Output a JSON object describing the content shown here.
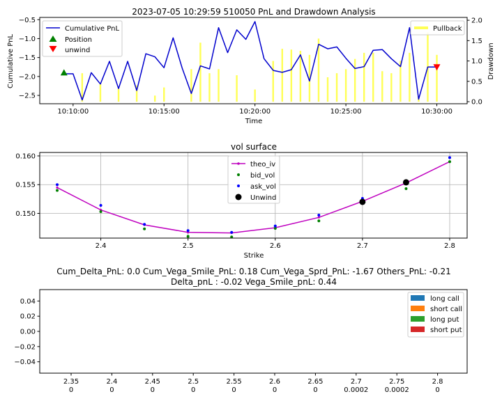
{
  "chart_data": [
    {
      "type": "line",
      "title": "2023-07-05 10:29:59 510050 PnL and Drawdown Analysis",
      "xlabel": "Time",
      "ylabel": "Cumulative PnL",
      "ylabel_right": "Drawdown",
      "xlim": [
        "10:08:10",
        "10:31:40"
      ],
      "ylim": [
        -2.72,
        -0.44
      ],
      "ylim_right": [
        -0.05,
        2.07
      ],
      "xticks": [
        "10:10:00",
        "10:15:00",
        "10:20:00",
        "10:25:00",
        "10:30:00"
      ],
      "yticks": [
        -0.5,
        -1.0,
        -1.5,
        -2.0,
        -2.5
      ],
      "yticks_right": [
        0.0,
        0.5,
        1.0,
        1.5,
        2.0
      ],
      "legend_left": [
        "Cumulative PnL",
        "Position",
        "unwind"
      ],
      "legend_right": [
        "Pullback"
      ],
      "colors": {
        "pnl": "#0000cd",
        "pullback": "#ffff55",
        "position": "#008000",
        "unwind": "#ff0000"
      },
      "series": [
        {
          "name": "Cumulative PnL",
          "x": [
            "10:09:30",
            "10:10:00",
            "10:10:30",
            "10:11:00",
            "10:11:30",
            "10:12:00",
            "10:12:30",
            "10:13:00",
            "10:13:30",
            "10:14:00",
            "10:14:30",
            "10:15:00",
            "10:15:30",
            "10:16:00",
            "10:16:30",
            "10:17:00",
            "10:17:30",
            "10:18:00",
            "10:18:30",
            "10:19:00",
            "10:19:30",
            "10:20:00",
            "10:20:30",
            "10:21:00",
            "10:21:30",
            "10:22:00",
            "10:22:30",
            "10:23:00",
            "10:23:30",
            "10:24:00",
            "10:24:30",
            "10:25:00",
            "10:25:30",
            "10:26:00",
            "10:26:30",
            "10:27:00",
            "10:27:30",
            "10:28:00",
            "10:28:30",
            "10:29:00",
            "10:29:30",
            "10:30:00"
          ],
          "y": [
            -1.93,
            -1.93,
            -2.62,
            -1.9,
            -2.2,
            -1.6,
            -2.32,
            -1.6,
            -2.37,
            -1.4,
            -1.48,
            -1.77,
            -0.98,
            -1.78,
            -2.45,
            -1.72,
            -1.8,
            -0.71,
            -1.37,
            -0.77,
            -1.02,
            -0.55,
            -1.53,
            -1.84,
            -1.89,
            -1.82,
            -1.43,
            -2.12,
            -1.15,
            -1.27,
            -1.22,
            -1.52,
            -1.79,
            -1.74,
            -1.31,
            -1.29,
            -1.53,
            -1.74,
            -0.71,
            -2.6,
            -1.75,
            -1.75
          ]
        },
        {
          "name": "Pullback",
          "type": "bar",
          "x": [
            "10:10:30",
            "10:11:30",
            "10:12:30",
            "10:13:30",
            "10:14:30",
            "10:15:00",
            "10:16:30",
            "10:17:00",
            "10:17:30",
            "10:18:00",
            "10:19:00",
            "10:20:00",
            "10:21:00",
            "10:21:30",
            "10:22:00",
            "10:22:30",
            "10:23:00",
            "10:23:30",
            "10:24:00",
            "10:24:30",
            "10:25:00",
            "10:25:30",
            "10:26:00",
            "10:26:30",
            "10:27:00",
            "10:27:30",
            "10:28:00",
            "10:28:30",
            "10:29:00",
            "10:29:30",
            "10:30:00"
          ],
          "y": [
            0.7,
            0.45,
            0.32,
            0.4,
            0.15,
            0.35,
            0.8,
            1.45,
            0.7,
            0.8,
            0.65,
            0.3,
            1.0,
            1.3,
            1.28,
            1.25,
            1.15,
            1.55,
            0.6,
            0.7,
            0.8,
            1.05,
            1.2,
            1.2,
            0.75,
            0.7,
            1.0,
            1.2,
            0.15,
            1.7,
            1.15
          ]
        },
        {
          "name": "Position",
          "x": [
            "10:09:30"
          ],
          "y": [
            -1.9
          ],
          "marker": "triangle-up"
        },
        {
          "name": "unwind",
          "x": [
            "10:30:00"
          ],
          "y": [
            -1.75
          ],
          "marker": "triangle-down"
        }
      ]
    },
    {
      "type": "line",
      "title": "vol surface",
      "xlabel": "Strike",
      "ylabel": "",
      "xlim": [
        2.33,
        2.82
      ],
      "ylim": [
        0.1457,
        0.1606
      ],
      "xticks": [
        "2.4",
        "2.5",
        "2.6",
        "2.7",
        "2.8"
      ],
      "yticks": [
        "0.150",
        "0.155",
        "0.160"
      ],
      "legend": [
        "theo_iv",
        "bid_vol",
        "ask_vol",
        "Unwind"
      ],
      "colors": {
        "theo_iv": "#bf00bf",
        "bid_vol": "#008000",
        "ask_vol": "#0000ff",
        "unwind": "#000000"
      },
      "categories": [
        2.35,
        2.4,
        2.45,
        2.5,
        2.55,
        2.6,
        2.65,
        2.7,
        2.75,
        2.8
      ],
      "series": [
        {
          "name": "theo_iv",
          "values": [
            0.1545,
            0.1506,
            0.148,
            0.1467,
            0.1466,
            0.1475,
            0.1493,
            0.1521,
            0.1553,
            0.159
          ]
        },
        {
          "name": "bid_vol",
          "values": [
            0.154,
            0.1503,
            0.1473,
            0.146,
            0.1459,
            0.1474,
            0.1487,
            0.152,
            0.1543,
            0.159
          ]
        },
        {
          "name": "ask_vol",
          "values": [
            0.155,
            0.1514,
            0.1481,
            0.147,
            0.1467,
            0.1478,
            0.1497,
            0.1526,
            0.1555,
            0.1597
          ]
        },
        {
          "name": "Unwind",
          "x": [
            2.7,
            2.75
          ],
          "values": [
            0.152,
            0.1554
          ]
        }
      ]
    },
    {
      "type": "bar",
      "title": "Cum_Delta_PnL: 0.0  Cum_Vega_Smile_PnL: 0.18 Cum_Vega_Sprd_PnL: -1.67 Others_PnL: -0.21",
      "subtitle": "Delta_pnL : -0.02 Vega_Smile_pnL: 0.44",
      "ylim": [
        -0.055,
        0.055
      ],
      "yticks": [
        "0.04",
        "0.02",
        "0.00",
        "−0.02",
        "−0.04"
      ],
      "categories": [
        "2.35",
        "2.4",
        "2.45",
        "2.5",
        "2.55",
        "2.6",
        "2.65",
        "2.7",
        "2.75",
        "2.8"
      ],
      "category_values": [
        "0",
        "0",
        "0",
        "0",
        "0",
        "0",
        "0",
        "0.0002",
        "0.0002",
        "0"
      ],
      "legend": [
        "long call",
        "short call",
        "long put",
        "short put"
      ],
      "colors": {
        "long call": "#1f77b4",
        "short call": "#ff7f0e",
        "long put": "#2ca02c",
        "short put": "#d62728"
      },
      "series": [
        {
          "name": "long call",
          "values": [
            0,
            0,
            0,
            0,
            0,
            0,
            0,
            0,
            0,
            0
          ]
        },
        {
          "name": "short call",
          "values": [
            0,
            0,
            0,
            0,
            0,
            0,
            0,
            0,
            0,
            0
          ]
        },
        {
          "name": "long put",
          "values": [
            0,
            0,
            0,
            0,
            0,
            0,
            0,
            0,
            0,
            0
          ]
        },
        {
          "name": "short put",
          "values": [
            0,
            0,
            0,
            0,
            0,
            0,
            0,
            0,
            0,
            0
          ]
        }
      ]
    }
  ]
}
